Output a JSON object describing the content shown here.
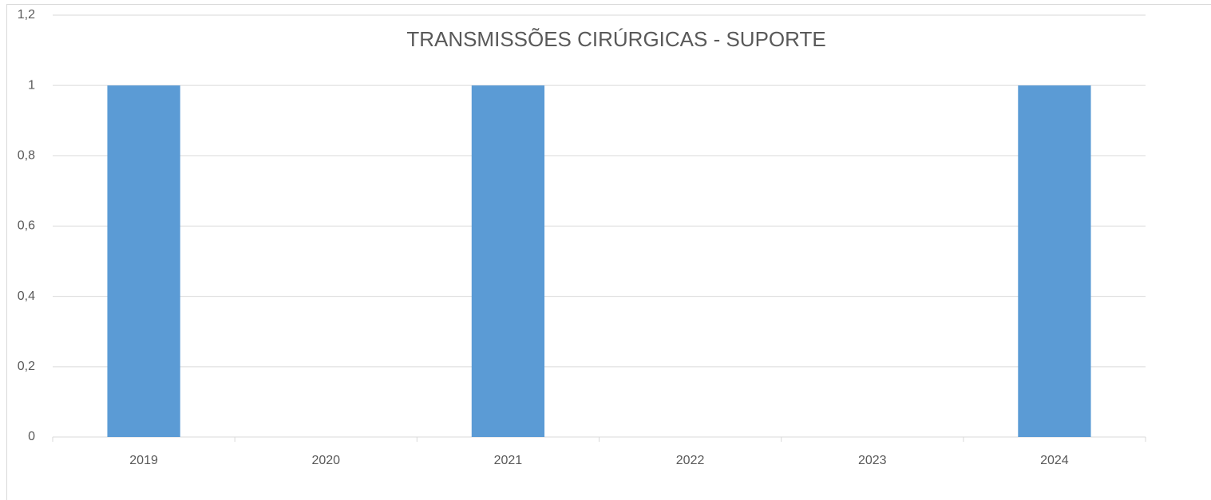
{
  "chart_data": {
    "type": "bar",
    "title": "TRANSMISSÕES CIRÚRGICAS - SUPORTE",
    "categories": [
      "2019",
      "2020",
      "2021",
      "2022",
      "2023",
      "2024"
    ],
    "values": [
      1,
      0,
      1,
      0,
      0,
      1
    ],
    "color": "#5b9bd5",
    "ylim": [
      0,
      1.2
    ],
    "yticks": [
      0,
      {
        "value": 0.2,
        "label": "0,2"
      },
      {
        "value": 0.4,
        "label": "0,4"
      },
      {
        "value": 0.6,
        "label": "0,6"
      },
      {
        "value": 0.8,
        "label": "0,8"
      },
      1,
      {
        "value": 1.2,
        "label": "1,2"
      }
    ],
    "grid": true
  }
}
